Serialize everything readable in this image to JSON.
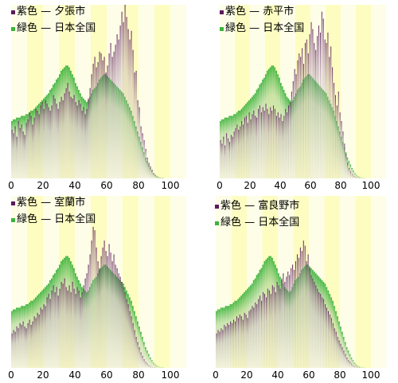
{
  "chart_data": [
    {
      "type": "bar",
      "series": [
        {
          "name": "紫色 — 夕張市",
          "color": "#5b1a5b",
          "values": [
            0.28,
            0.26,
            0.3,
            0.24,
            0.33,
            0.29,
            0.31,
            0.27,
            0.25,
            0.32,
            0.34,
            0.38,
            0.36,
            0.31,
            0.35,
            0.4,
            0.39,
            0.37,
            0.42,
            0.44,
            0.4,
            0.45,
            0.43,
            0.41,
            0.39,
            0.42,
            0.48,
            0.46,
            0.43,
            0.4,
            0.44,
            0.47,
            0.45,
            0.49,
            0.52,
            0.55,
            0.5,
            0.47,
            0.46,
            0.48,
            0.44,
            0.42,
            0.45,
            0.43,
            0.39,
            0.41,
            0.37,
            0.4,
            0.46,
            0.52,
            0.6,
            0.66,
            0.7,
            0.64,
            0.67,
            0.73,
            0.72,
            0.68,
            0.7,
            0.61,
            0.65,
            0.72,
            0.78,
            0.7,
            0.73,
            0.77,
            0.83,
            0.8,
            0.88,
            0.96,
            0.9,
            1.0,
            0.93,
            0.86,
            0.8,
            0.85,
            0.74,
            0.61,
            0.62,
            0.45,
            0.41,
            0.3,
            0.26,
            0.22,
            0.17,
            0.12,
            0.09,
            0.07,
            0.05,
            0.03,
            0.02,
            0.01,
            0.005,
            0.003,
            0.002,
            0.001,
            0,
            0,
            0,
            0,
            0
          ]
        },
        {
          "name": "緑色 — 日本全国",
          "color": "#3cb43c",
          "values": [
            0.33,
            0.34,
            0.34,
            0.35,
            0.35,
            0.35,
            0.36,
            0.36,
            0.36,
            0.37,
            0.37,
            0.38,
            0.39,
            0.39,
            0.4,
            0.41,
            0.42,
            0.43,
            0.44,
            0.45,
            0.46,
            0.47,
            0.48,
            0.49,
            0.51,
            0.52,
            0.54,
            0.55,
            0.57,
            0.58,
            0.6,
            0.62,
            0.63,
            0.64,
            0.65,
            0.65,
            0.64,
            0.62,
            0.6,
            0.58,
            0.55,
            0.53,
            0.51,
            0.49,
            0.47,
            0.46,
            0.45,
            0.44,
            0.45,
            0.47,
            0.49,
            0.51,
            0.52,
            0.53,
            0.55,
            0.57,
            0.58,
            0.59,
            0.6,
            0.6,
            0.59,
            0.58,
            0.57,
            0.56,
            0.55,
            0.54,
            0.53,
            0.52,
            0.51,
            0.5,
            0.49,
            0.47,
            0.45,
            0.43,
            0.41,
            0.39,
            0.36,
            0.33,
            0.3,
            0.27,
            0.24,
            0.21,
            0.18,
            0.15,
            0.12,
            0.1,
            0.08,
            0.06,
            0.045,
            0.03,
            0.02,
            0.013,
            0.008,
            0.005,
            0.003,
            0.001,
            0,
            0,
            0,
            0,
            0
          ]
        }
      ],
      "xticks": [
        "0",
        "20",
        "40",
        "60",
        "80",
        "100"
      ],
      "xlim": [
        0,
        110
      ]
    },
    {
      "type": "bar",
      "series": [
        {
          "name": "紫色 — 赤平市",
          "color": "#5b1a5b",
          "values": [
            0.22,
            0.2,
            0.24,
            0.19,
            0.26,
            0.23,
            0.21,
            0.25,
            0.24,
            0.27,
            0.29,
            0.31,
            0.28,
            0.3,
            0.33,
            0.31,
            0.35,
            0.36,
            0.32,
            0.38,
            0.34,
            0.37,
            0.39,
            0.36,
            0.35,
            0.4,
            0.42,
            0.38,
            0.41,
            0.39,
            0.43,
            0.4,
            0.37,
            0.41,
            0.39,
            0.42,
            0.4,
            0.36,
            0.38,
            0.35,
            0.37,
            0.33,
            0.36,
            0.4,
            0.38,
            0.42,
            0.44,
            0.5,
            0.56,
            0.63,
            0.6,
            0.68,
            0.72,
            0.7,
            0.75,
            0.66,
            0.78,
            0.8,
            0.72,
            0.83,
            0.9,
            0.86,
            0.78,
            0.74,
            0.82,
            0.88,
            0.84,
            0.96,
            0.92,
            0.8,
            0.78,
            0.84,
            0.7,
            0.76,
            0.64,
            0.55,
            0.48,
            0.42,
            0.5,
            0.38,
            0.33,
            0.27,
            0.2,
            0.14,
            0.09,
            0.06,
            0.04,
            0.025,
            0.015,
            0.01,
            0.005,
            0.002,
            0.001,
            0,
            0,
            0,
            0,
            0,
            0,
            0,
            0
          ]
        },
        {
          "name": "緑色 — 日本全国",
          "color": "#3cb43c",
          "values": [
            0.33,
            0.34,
            0.34,
            0.35,
            0.35,
            0.35,
            0.36,
            0.36,
            0.36,
            0.37,
            0.37,
            0.38,
            0.39,
            0.39,
            0.4,
            0.41,
            0.42,
            0.43,
            0.44,
            0.45,
            0.46,
            0.47,
            0.48,
            0.49,
            0.51,
            0.52,
            0.54,
            0.55,
            0.57,
            0.58,
            0.6,
            0.62,
            0.63,
            0.64,
            0.65,
            0.65,
            0.64,
            0.62,
            0.6,
            0.58,
            0.55,
            0.53,
            0.51,
            0.49,
            0.47,
            0.46,
            0.45,
            0.44,
            0.45,
            0.47,
            0.49,
            0.51,
            0.52,
            0.53,
            0.55,
            0.57,
            0.58,
            0.59,
            0.6,
            0.6,
            0.59,
            0.58,
            0.57,
            0.56,
            0.55,
            0.54,
            0.53,
            0.52,
            0.51,
            0.5,
            0.49,
            0.47,
            0.45,
            0.43,
            0.41,
            0.39,
            0.36,
            0.33,
            0.3,
            0.27,
            0.24,
            0.21,
            0.18,
            0.15,
            0.12,
            0.1,
            0.08,
            0.06,
            0.045,
            0.03,
            0.02,
            0.013,
            0.008,
            0.005,
            0.003,
            0.001,
            0,
            0,
            0,
            0,
            0
          ]
        }
      ],
      "xticks": [
        "0",
        "20",
        "40",
        "60",
        "80",
        "100"
      ],
      "xlim": [
        0,
        110
      ]
    },
    {
      "type": "bar",
      "series": [
        {
          "name": "紫色 — 室蘭市",
          "color": "#5b1a5b",
          "values": [
            0.2,
            0.22,
            0.21,
            0.24,
            0.23,
            0.26,
            0.25,
            0.27,
            0.24,
            0.23,
            0.26,
            0.28,
            0.25,
            0.27,
            0.3,
            0.29,
            0.32,
            0.31,
            0.35,
            0.34,
            0.37,
            0.36,
            0.41,
            0.43,
            0.4,
            0.45,
            0.48,
            0.44,
            0.47,
            0.42,
            0.46,
            0.5,
            0.49,
            0.52,
            0.47,
            0.45,
            0.48,
            0.44,
            0.5,
            0.46,
            0.43,
            0.47,
            0.45,
            0.41,
            0.44,
            0.48,
            0.52,
            0.55,
            0.6,
            0.66,
            0.74,
            0.82,
            0.8,
            0.7,
            0.62,
            0.58,
            0.65,
            0.7,
            0.74,
            0.68,
            0.65,
            0.72,
            0.67,
            0.62,
            0.66,
            0.6,
            0.58,
            0.55,
            0.53,
            0.5,
            0.47,
            0.44,
            0.4,
            0.37,
            0.33,
            0.3,
            0.26,
            0.22,
            0.18,
            0.15,
            0.12,
            0.09,
            0.07,
            0.05,
            0.035,
            0.025,
            0.015,
            0.01,
            0.005,
            0.003,
            0.001,
            0,
            0,
            0,
            0,
            0,
            0,
            0,
            0,
            0,
            0
          ]
        },
        {
          "name": "緑色 — 日本全国",
          "color": "#3cb43c",
          "values": [
            0.33,
            0.34,
            0.34,
            0.35,
            0.35,
            0.35,
            0.36,
            0.36,
            0.36,
            0.37,
            0.37,
            0.38,
            0.39,
            0.39,
            0.4,
            0.41,
            0.42,
            0.43,
            0.44,
            0.45,
            0.46,
            0.47,
            0.48,
            0.49,
            0.51,
            0.52,
            0.54,
            0.55,
            0.57,
            0.58,
            0.6,
            0.62,
            0.63,
            0.64,
            0.65,
            0.65,
            0.64,
            0.62,
            0.6,
            0.58,
            0.55,
            0.53,
            0.51,
            0.49,
            0.47,
            0.46,
            0.45,
            0.44,
            0.45,
            0.47,
            0.49,
            0.51,
            0.52,
            0.53,
            0.55,
            0.57,
            0.58,
            0.59,
            0.6,
            0.6,
            0.59,
            0.58,
            0.57,
            0.56,
            0.55,
            0.54,
            0.53,
            0.52,
            0.51,
            0.5,
            0.49,
            0.47,
            0.45,
            0.43,
            0.41,
            0.39,
            0.36,
            0.33,
            0.3,
            0.27,
            0.24,
            0.21,
            0.18,
            0.15,
            0.12,
            0.1,
            0.08,
            0.06,
            0.045,
            0.03,
            0.02,
            0.013,
            0.008,
            0.005,
            0.003,
            0.001,
            0,
            0,
            0,
            0,
            0
          ]
        }
      ],
      "xticks": [
        "0",
        "20",
        "40",
        "60",
        "80",
        "100"
      ],
      "xlim": [
        0,
        110
      ]
    },
    {
      "type": "bar",
      "series": [
        {
          "name": "紫色 — 富良野市",
          "color": "#5b1a5b",
          "values": [
            0.2,
            0.22,
            0.21,
            0.23,
            0.22,
            0.25,
            0.24,
            0.26,
            0.25,
            0.27,
            0.26,
            0.28,
            0.27,
            0.3,
            0.29,
            0.31,
            0.3,
            0.28,
            0.32,
            0.31,
            0.29,
            0.33,
            0.34,
            0.36,
            0.35,
            0.38,
            0.37,
            0.4,
            0.42,
            0.39,
            0.44,
            0.43,
            0.41,
            0.46,
            0.45,
            0.43,
            0.48,
            0.47,
            0.44,
            0.5,
            0.48,
            0.46,
            0.52,
            0.55,
            0.5,
            0.53,
            0.56,
            0.54,
            0.58,
            0.6,
            0.57,
            0.62,
            0.66,
            0.64,
            0.7,
            0.68,
            0.74,
            0.71,
            0.62,
            0.66,
            0.58,
            0.54,
            0.52,
            0.5,
            0.48,
            0.46,
            0.44,
            0.43,
            0.41,
            0.4,
            0.37,
            0.35,
            0.33,
            0.31,
            0.29,
            0.26,
            0.23,
            0.21,
            0.18,
            0.16,
            0.14,
            0.12,
            0.1,
            0.08,
            0.06,
            0.045,
            0.035,
            0.025,
            0.015,
            0.01,
            0.006,
            0.003,
            0.001,
            0,
            0,
            0,
            0,
            0,
            0,
            0,
            0
          ]
        },
        {
          "name": "緑色 — 日本全国",
          "color": "#3cb43c",
          "values": [
            0.33,
            0.34,
            0.34,
            0.35,
            0.35,
            0.35,
            0.36,
            0.36,
            0.36,
            0.37,
            0.37,
            0.38,
            0.39,
            0.39,
            0.4,
            0.41,
            0.42,
            0.43,
            0.44,
            0.45,
            0.46,
            0.47,
            0.48,
            0.49,
            0.51,
            0.52,
            0.54,
            0.55,
            0.57,
            0.58,
            0.6,
            0.62,
            0.63,
            0.64,
            0.65,
            0.65,
            0.64,
            0.62,
            0.6,
            0.58,
            0.55,
            0.53,
            0.51,
            0.49,
            0.47,
            0.46,
            0.45,
            0.44,
            0.45,
            0.47,
            0.49,
            0.51,
            0.52,
            0.53,
            0.55,
            0.57,
            0.58,
            0.59,
            0.6,
            0.6,
            0.59,
            0.58,
            0.57,
            0.56,
            0.55,
            0.54,
            0.53,
            0.52,
            0.51,
            0.5,
            0.49,
            0.47,
            0.45,
            0.43,
            0.41,
            0.39,
            0.36,
            0.33,
            0.3,
            0.27,
            0.24,
            0.21,
            0.18,
            0.15,
            0.12,
            0.1,
            0.08,
            0.06,
            0.045,
            0.03,
            0.02,
            0.013,
            0.008,
            0.005,
            0.003,
            0.001,
            0,
            0,
            0,
            0,
            0
          ]
        }
      ],
      "xticks": [
        "0",
        "20",
        "40",
        "60",
        "80",
        "100"
      ],
      "xlim": [
        0,
        110
      ]
    }
  ]
}
